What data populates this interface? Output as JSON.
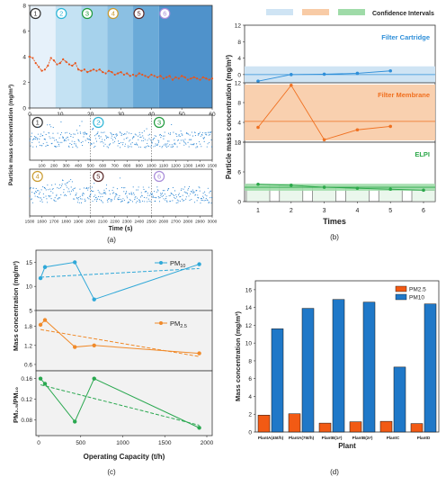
{
  "panel_labels": [
    "(a)",
    "(b)",
    "(c)",
    "(d)"
  ],
  "chart_data": [
    {
      "id": "a_top",
      "type": "line",
      "xlabel": "Time (min)",
      "ylabel": "Particle mass concentration (mg/m³)",
      "xlim": [
        0,
        60
      ],
      "ylim": [
        0,
        8
      ],
      "xticks": [
        0,
        10,
        20,
        30,
        40,
        50,
        60
      ],
      "yticks": [
        0,
        2,
        4,
        6,
        8
      ],
      "phase_bands": [
        {
          "label": "1",
          "from": 0,
          "to": 8.5,
          "color": "#e6f1fa",
          "circle": "#333333"
        },
        {
          "label": "2",
          "from": 8.5,
          "to": 17,
          "color": "#c4e2f3",
          "circle": "#2bb5d6"
        },
        {
          "label": "3",
          "from": 17,
          "to": 25.5,
          "color": "#a6d2ec",
          "circle": "#1e9a3c"
        },
        {
          "label": "4",
          "from": 25.5,
          "to": 34,
          "color": "#8bc0e3",
          "circle": "#c99a2e"
        },
        {
          "label": "5",
          "from": 34,
          "to": 42.5,
          "color": "#6aaad8",
          "circle": "#5a2a2a"
        },
        {
          "label": "6",
          "from": 42.5,
          "to": 60,
          "color": "#4f92cb",
          "circle": "#a88bd8"
        }
      ],
      "series": [
        {
          "color": "#e8551c",
          "x": [
            0,
            1,
            2,
            3,
            4,
            5,
            6,
            7,
            8,
            9,
            10,
            11,
            12,
            13,
            14,
            15,
            16,
            17,
            18,
            19,
            20,
            21,
            22,
            23,
            24,
            25,
            26,
            27,
            28,
            29,
            30,
            31,
            32,
            33,
            34,
            35,
            36,
            37,
            38,
            39,
            40,
            41,
            42,
            43,
            44,
            45,
            46,
            47,
            48,
            49,
            50,
            51,
            52,
            53,
            54,
            55,
            56,
            57,
            58,
            59,
            60
          ],
          "values": [
            4.0,
            3.9,
            3.5,
            3.2,
            2.9,
            3.0,
            3.3,
            3.9,
            3.7,
            3.4,
            3.5,
            3.8,
            3.6,
            3.4,
            3.3,
            3.5,
            3.0,
            2.9,
            3.0,
            2.8,
            2.9,
            3.0,
            2.9,
            3.0,
            2.8,
            2.7,
            2.9,
            2.8,
            2.6,
            2.7,
            2.8,
            2.6,
            2.7,
            2.5,
            2.6,
            2.5,
            2.7,
            2.6,
            2.5,
            2.4,
            2.6,
            2.5,
            2.4,
            2.5,
            2.3,
            2.4,
            2.5,
            2.2,
            2.4,
            2.3,
            2.5,
            2.4,
            2.2,
            2.3,
            2.4,
            2.3,
            2.2,
            2.4,
            2.3,
            2.2,
            2.3
          ]
        }
      ]
    },
    {
      "id": "a_scatter",
      "type": "scatter",
      "xlabel": "Time (s)",
      "ylabel": "",
      "rows": [
        {
          "xlim": [
            0,
            1500
          ],
          "xticks": [
            100,
            200,
            300,
            400,
            500,
            600,
            700,
            800,
            900,
            1000,
            1100,
            1200,
            1300,
            1400,
            1500
          ],
          "labels": [
            {
              "label": "1",
              "x": 20,
              "circle": "#333333"
            },
            {
              "label": "2",
              "x": 520,
              "circle": "#2bb5d6"
            },
            {
              "label": "3",
              "x": 1020,
              "circle": "#1e9a3c"
            }
          ],
          "dividers": [
            500,
            1000
          ]
        },
        {
          "xlim": [
            1500,
            3000
          ],
          "xticks": [
            1500,
            1600,
            1700,
            1800,
            1900,
            2000,
            2100,
            2200,
            2300,
            2400,
            2500,
            2600,
            2700,
            2800,
            2900,
            3000
          ],
          "labels": [
            {
              "label": "4",
              "x": 1520,
              "circle": "#c99a2e"
            },
            {
              "label": "5",
              "x": 2020,
              "circle": "#5a2a2a"
            },
            {
              "label": "6",
              "x": 2520,
              "circle": "#a88bd8"
            }
          ],
          "dividers": [
            2000,
            2500
          ]
        }
      ],
      "color": "#1f7fd0"
    },
    {
      "id": "b",
      "type": "line",
      "xlabel": "Times",
      "ylabel": "Particle mass concentration (mg/m³)",
      "legend": [
        "Confidence Intervals"
      ],
      "legend_swatches": [
        "#cfe4f4",
        "#f8cba6",
        "#9fdba8"
      ],
      "xticks": [
        1,
        2,
        3,
        4,
        5,
        6
      ],
      "subpanels": [
        {
          "name": "Filter Cartridge",
          "color": "#2f8fd9",
          "band": "#cfe4f4",
          "yticks": [
            0,
            4,
            8,
            12
          ],
          "ylim": [
            -2,
            12
          ],
          "x": [
            1,
            2,
            3,
            4,
            5
          ],
          "values": [
            -1.6,
            0.0,
            0.1,
            0.3,
            0.9
          ],
          "mean": 0.0
        },
        {
          "name": "Filter Membrane",
          "color": "#f07020",
          "band": "#f8cba6",
          "yticks": [
            0,
            4,
            8,
            12
          ],
          "ylim": [
            0,
            12
          ],
          "x": [
            1,
            2,
            3,
            4,
            5
          ],
          "values": [
            3.0,
            11.5,
            0.5,
            2.5,
            3.2
          ],
          "mean": 4.2
        },
        {
          "name": "ELPI",
          "color": "#2ca84a",
          "band": "#9fdba8",
          "yticks": [
            0,
            6,
            12
          ],
          "ylim": [
            0,
            12
          ],
          "x": [
            1,
            2,
            3,
            4,
            5,
            6
          ],
          "values": [
            3.5,
            3.3,
            2.9,
            2.7,
            2.5,
            2.3
          ],
          "mean": 2.9
        }
      ]
    },
    {
      "id": "c",
      "type": "line",
      "xlabel": "Operating Capacity (t/h)",
      "xlim": [
        0,
        2000
      ],
      "xticks": [
        0,
        500,
        1000,
        1500,
        2000
      ],
      "subpanels": [
        {
          "name": "PM",
          "sub": "10",
          "ylabel": "Mass concentration (mg/m³)",
          "color": "#2fa8d8",
          "ylim": [
            5,
            17.5
          ],
          "yticks": [
            5,
            10,
            15
          ],
          "x": [
            22,
            75,
            430,
            660,
            1910
          ],
          "values": [
            11.7,
            14.0,
            15.0,
            7.3,
            14.6
          ],
          "fit": [
            [
              22,
              11.9
            ],
            [
              1910,
              13.7
            ]
          ]
        },
        {
          "name": "PM",
          "sub": "2.5",
          "ylabel": "",
          "color": "#f08a2a",
          "ylim": [
            0.4,
            2.3
          ],
          "yticks": [
            0.6,
            1.2,
            1.8
          ],
          "x": [
            22,
            75,
            430,
            660,
            1910
          ],
          "values": [
            1.85,
            2.0,
            1.15,
            1.2,
            0.95
          ],
          "fit": [
            [
              22,
              1.7
            ],
            [
              1910,
              0.85
            ]
          ]
        },
        {
          "name": "PM₂.₅/PM₁₀",
          "ylabel": "PM₂.₅/PM₁₀",
          "color": "#2aa850",
          "ylim": [
            0.05,
            0.175
          ],
          "yticks": [
            0.08,
            0.12,
            0.16
          ],
          "x": [
            22,
            75,
            430,
            660,
            1910
          ],
          "values": [
            0.16,
            0.15,
            0.077,
            0.16,
            0.065
          ],
          "fit": [
            [
              22,
              0.148
            ],
            [
              1910,
              0.07
            ]
          ]
        }
      ]
    },
    {
      "id": "d",
      "type": "bar",
      "xlabel": "Plant",
      "ylabel": "Mass concentration (mg/m³)",
      "ylim": [
        0,
        17
      ],
      "yticks": [
        0,
        2,
        4,
        6,
        8,
        10,
        12,
        14,
        16
      ],
      "categories": [
        "PlantA(45t/h)",
        "PlantA(75t/h)",
        "PlantB(1#)",
        "PlantB(2#)",
        "PlantC",
        "PlantD"
      ],
      "series": [
        {
          "name": "PM2.5",
          "color": "#f25a14",
          "values": [
            1.9,
            2.05,
            1.0,
            1.15,
            1.2,
            0.95
          ]
        },
        {
          "name": "PM10",
          "color": "#1f78c8",
          "values": [
            11.6,
            13.9,
            14.9,
            14.6,
            7.3,
            14.4
          ]
        }
      ]
    }
  ]
}
